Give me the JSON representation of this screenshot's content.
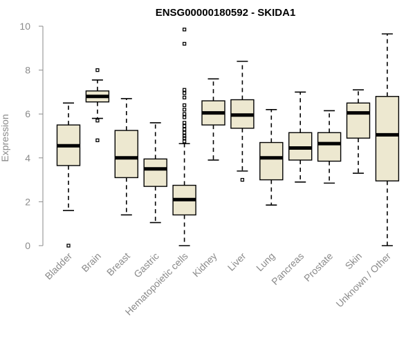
{
  "chart_data": {
    "type": "boxplot",
    "title": "ENSG00000180592 - SKIDA1",
    "ylabel": "Expression",
    "xlabel": "",
    "ylim": [
      0,
      10
    ],
    "yticks": [
      0,
      2,
      4,
      6,
      8,
      10
    ],
    "box_color": "#ede8d0",
    "categories": [
      "Bladder",
      "Brain",
      "Breast",
      "Gastric",
      "Hematopoietic cells",
      "Kidney",
      "Liver",
      "Lung",
      "Pancreas",
      "Prostate",
      "Skin",
      "Unknown / Other"
    ],
    "boxes": [
      {
        "min": 1.6,
        "q1": 3.65,
        "median": 4.55,
        "q3": 5.5,
        "max": 6.5,
        "outliers": [
          0.0
        ]
      },
      {
        "min": 5.8,
        "q1": 6.55,
        "median": 6.8,
        "q3": 7.05,
        "max": 7.55,
        "outliers": [
          8.0,
          5.7,
          4.8
        ]
      },
      {
        "min": 1.4,
        "q1": 3.1,
        "median": 4.0,
        "q3": 5.25,
        "max": 6.7,
        "outliers": []
      },
      {
        "min": 1.05,
        "q1": 2.7,
        "median": 3.5,
        "q3": 3.95,
        "max": 5.6,
        "outliers": []
      },
      {
        "min": 0.0,
        "q1": 1.4,
        "median": 2.1,
        "q3": 2.75,
        "max": 4.65,
        "outliers": [
          9.85,
          9.2,
          7.1,
          6.95,
          6.75,
          6.4,
          6.2,
          6.0,
          5.85,
          5.6,
          5.45,
          5.3,
          5.15,
          5.0,
          4.9,
          4.75
        ]
      },
      {
        "min": 3.9,
        "q1": 5.5,
        "median": 6.05,
        "q3": 6.6,
        "max": 7.6,
        "outliers": []
      },
      {
        "min": 3.4,
        "q1": 5.35,
        "median": 5.95,
        "q3": 6.65,
        "max": 8.4,
        "outliers": [
          3.0
        ]
      },
      {
        "min": 1.85,
        "q1": 3.0,
        "median": 4.0,
        "q3": 4.7,
        "max": 6.2,
        "outliers": []
      },
      {
        "min": 2.9,
        "q1": 3.9,
        "median": 4.45,
        "q3": 5.15,
        "max": 7.0,
        "outliers": []
      },
      {
        "min": 2.85,
        "q1": 3.85,
        "median": 4.65,
        "q3": 5.15,
        "max": 6.15,
        "outliers": []
      },
      {
        "min": 3.3,
        "q1": 4.9,
        "median": 6.05,
        "q3": 6.5,
        "max": 7.1,
        "outliers": []
      },
      {
        "min": 0.0,
        "q1": 2.95,
        "median": 5.05,
        "q3": 6.8,
        "max": 9.65,
        "outliers": []
      }
    ]
  }
}
